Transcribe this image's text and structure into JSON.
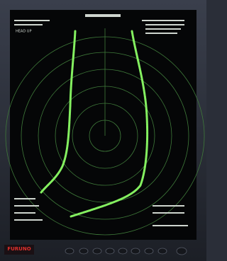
{
  "header": {
    "mode": "HEAD UP"
  },
  "footer": {
    "brand": "FURUNO"
  }
}
